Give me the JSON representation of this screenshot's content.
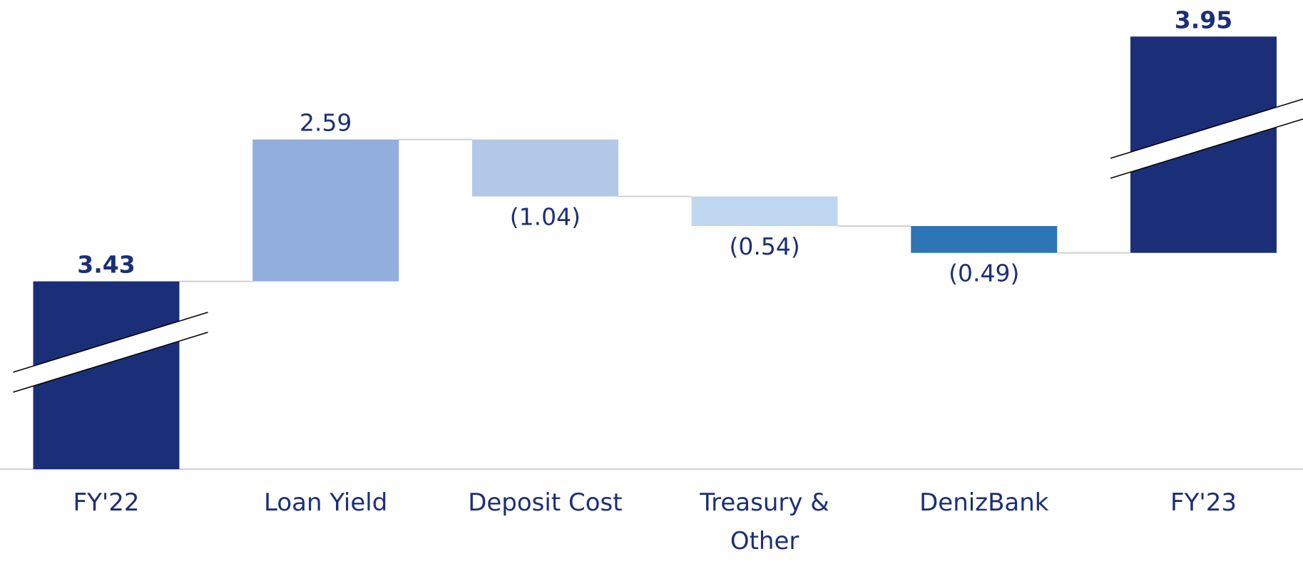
{
  "chart_data": {
    "type": "waterfall",
    "categories": [
      "FY'22",
      "Loan Yield",
      "Deposit Cost",
      "Treasury & Other",
      "DenizBank",
      "FY'23"
    ],
    "values": [
      3.43,
      2.59,
      -1.04,
      -0.54,
      -0.49,
      3.95
    ],
    "value_labels": [
      "3.43",
      "2.59",
      "(1.04)",
      "(0.54)",
      "(0.49)",
      "3.95"
    ],
    "totals": [
      true,
      false,
      false,
      false,
      false,
      true
    ],
    "colors": [
      "#1b2f78",
      "#91aedd",
      "#b3c7e6",
      "#bfd7ee",
      "#2e75b6",
      "#1b2f78"
    ]
  }
}
